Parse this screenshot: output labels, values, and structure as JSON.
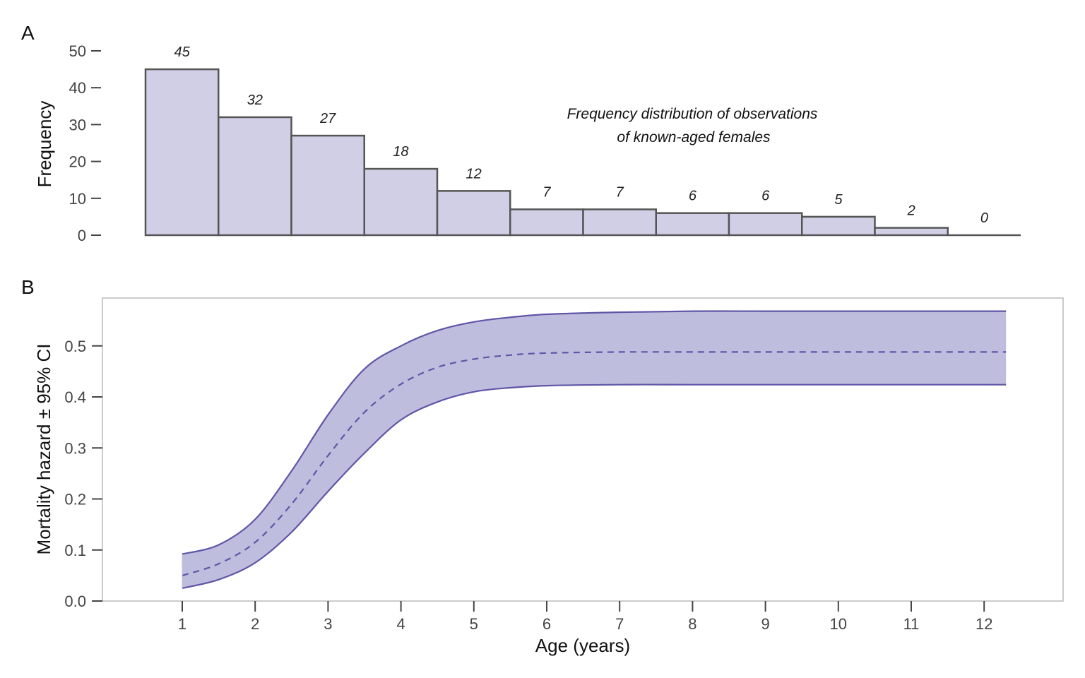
{
  "chart_data": [
    {
      "panel": "A",
      "type": "bar",
      "categories": [
        "1",
        "2",
        "3",
        "4",
        "5",
        "6",
        "7",
        "8",
        "9",
        "10",
        "11",
        "12"
      ],
      "values": [
        45,
        32,
        27,
        18,
        12,
        7,
        7,
        6,
        6,
        5,
        2,
        0
      ],
      "bar_labels": [
        "45",
        "32",
        "27",
        "18",
        "12",
        "7",
        "7",
        "6",
        "6",
        "5",
        "2",
        "0"
      ],
      "ylabel": "Frequency",
      "ylim": [
        0,
        50
      ],
      "yticks": [
        0,
        10,
        20,
        30,
        40,
        50
      ],
      "annotation_lines": [
        "Frequency distribution of observations",
        "of known-aged females"
      ],
      "colors": {
        "fill": "#d0cfe5",
        "stroke": "#555555"
      }
    },
    {
      "panel": "B",
      "type": "line",
      "xlabel": "Age (years)",
      "ylabel": "Mortality hazard ± 95% CI",
      "xlim": [
        1,
        12.3
      ],
      "ylim": [
        0,
        0.58
      ],
      "xticks": [
        1,
        2,
        3,
        4,
        5,
        6,
        7,
        8,
        9,
        10,
        11,
        12
      ],
      "yticks": [
        0.0,
        0.1,
        0.2,
        0.3,
        0.4,
        0.5
      ],
      "ytick_labels": [
        "0.0",
        "0.1",
        "0.2",
        "0.3",
        "0.4",
        "0.5"
      ],
      "x": [
        1.0,
        1.5,
        2.0,
        2.5,
        3.0,
        3.5,
        4.0,
        4.5,
        5.0,
        5.5,
        6.0,
        7.0,
        8.0,
        9.0,
        10.0,
        11.0,
        12.3
      ],
      "series": [
        {
          "role": "lower",
          "values": [
            0.025,
            0.042,
            0.075,
            0.135,
            0.215,
            0.29,
            0.355,
            0.39,
            0.41,
            0.418,
            0.422,
            0.424,
            0.424,
            0.424,
            0.424,
            0.424,
            0.424
          ]
        },
        {
          "role": "estimate",
          "values": [
            0.05,
            0.073,
            0.115,
            0.19,
            0.285,
            0.37,
            0.425,
            0.458,
            0.474,
            0.482,
            0.486,
            0.488,
            0.488,
            0.488,
            0.488,
            0.488,
            0.488
          ]
        },
        {
          "role": "upper",
          "values": [
            0.092,
            0.11,
            0.16,
            0.255,
            0.365,
            0.455,
            0.5,
            0.53,
            0.547,
            0.556,
            0.562,
            0.566,
            0.568,
            0.568,
            0.568,
            0.568,
            0.568
          ]
        }
      ],
      "colors": {
        "band": "#bfbddd",
        "line": "#5f56a7",
        "frame": "#bbbbbb"
      }
    }
  ],
  "panel_letters": {
    "a": "A",
    "b": "B"
  }
}
